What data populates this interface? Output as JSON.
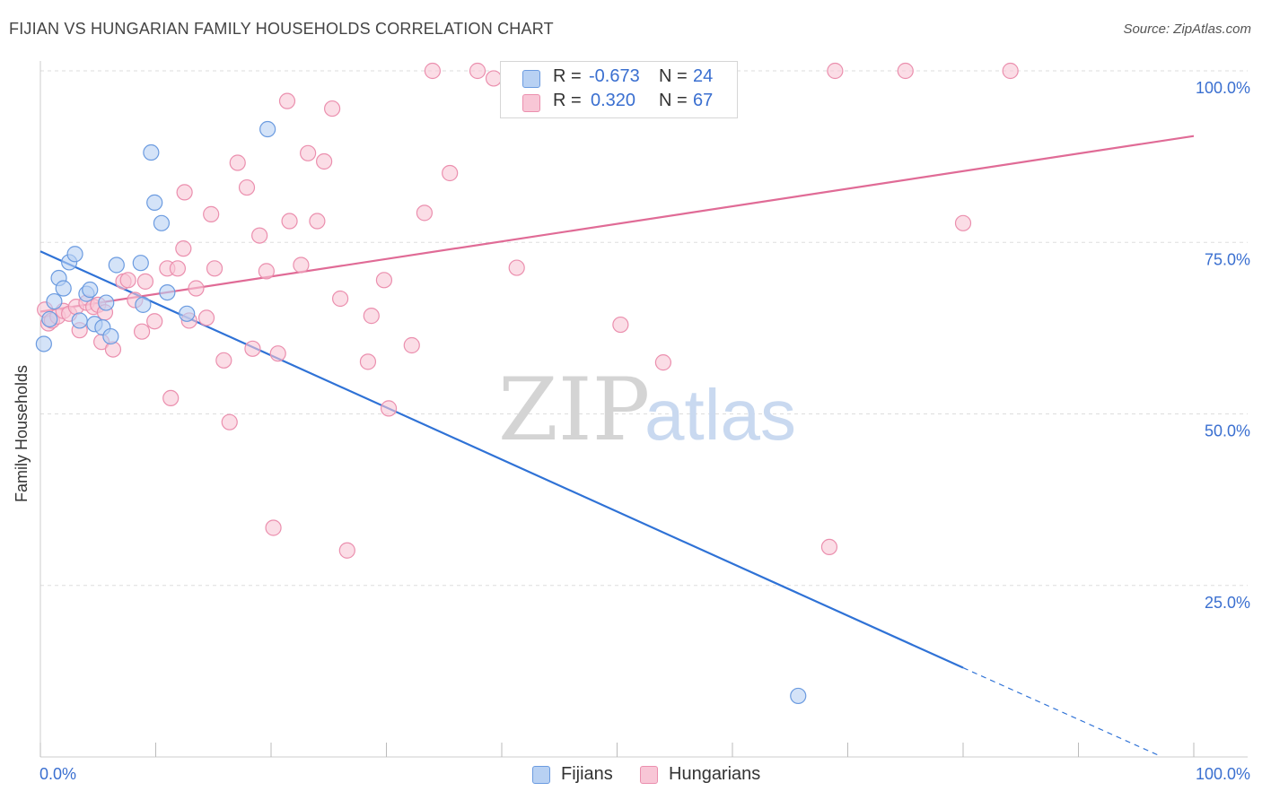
{
  "header": {
    "title": "FIJIAN VS HUNGARIAN FAMILY HOUSEHOLDS CORRELATION CHART",
    "source": "Source: ZipAtlas.com"
  },
  "watermark": {
    "zip": "ZIP",
    "atlas": "atlas"
  },
  "legend": {
    "fijians": {
      "r_label": "R =",
      "r_value": "-0.673",
      "n_label": "N =",
      "n_value": "24"
    },
    "hungarians": {
      "r_label": "R =",
      "r_value": "0.320",
      "n_label": "N =",
      "n_value": "67"
    }
  },
  "bottom_legend": {
    "fijians": "Fijians",
    "hungarians": "Hungarians"
  },
  "colors": {
    "fijian_fill": "#b8d1f3",
    "fijian_stroke": "#6b9be0",
    "fijian_line": "#2f72d6",
    "hungarian_fill": "#f8c6d6",
    "hungarian_stroke": "#eb8fae",
    "hungarian_line": "#e06b96",
    "tick_label": "#3a6fd0",
    "grid": "#dddddd"
  },
  "chart_data": {
    "type": "scatter",
    "title": "FIJIAN VS HUNGARIAN FAMILY HOUSEHOLDS CORRELATION CHART",
    "xlabel": "",
    "ylabel": "Family Households",
    "xlim": [
      0,
      100
    ],
    "ylim": [
      0,
      100
    ],
    "x_tick_labels": [
      "0.0%",
      "100.0%"
    ],
    "y_ticks": [
      25,
      50,
      75,
      100
    ],
    "y_tick_labels": [
      "25.0%",
      "50.0%",
      "75.0%",
      "100.0%"
    ],
    "grid": true,
    "series": [
      {
        "name": "Fijians",
        "r": -0.673,
        "n": 24,
        "points": [
          [
            0.3,
            60.2
          ],
          [
            0.8,
            63.8
          ],
          [
            1.2,
            66.4
          ],
          [
            1.6,
            69.8
          ],
          [
            2.0,
            68.3
          ],
          [
            2.5,
            72.1
          ],
          [
            3.0,
            73.3
          ],
          [
            3.4,
            63.6
          ],
          [
            4.0,
            67.5
          ],
          [
            4.3,
            68.1
          ],
          [
            4.7,
            63.1
          ],
          [
            5.4,
            62.6
          ],
          [
            5.7,
            66.2
          ],
          [
            6.1,
            61.3
          ],
          [
            6.6,
            71.7
          ],
          [
            8.7,
            72.0
          ],
          [
            8.9,
            65.9
          ],
          [
            9.6,
            88.1
          ],
          [
            9.9,
            80.8
          ],
          [
            10.5,
            77.8
          ],
          [
            11.0,
            67.7
          ],
          [
            12.7,
            64.6
          ],
          [
            19.7,
            91.5
          ],
          [
            65.7,
            8.9
          ]
        ],
        "trend": {
          "x0": 0,
          "y0": 73.7,
          "x1": 80,
          "y1": 13.0,
          "dash_to_x": 97,
          "dash_to_y": 0.2
        }
      },
      {
        "name": "Hungarians",
        "r": 0.32,
        "n": 67,
        "points": [
          [
            0.4,
            65.2
          ],
          [
            0.7,
            63.2
          ],
          [
            1.0,
            63.6
          ],
          [
            1.5,
            64.2
          ],
          [
            2.0,
            65.0
          ],
          [
            2.5,
            64.6
          ],
          [
            3.1,
            65.6
          ],
          [
            3.4,
            62.2
          ],
          [
            4.0,
            66.2
          ],
          [
            4.6,
            65.6
          ],
          [
            5.0,
            65.9
          ],
          [
            5.3,
            60.5
          ],
          [
            5.6,
            64.8
          ],
          [
            6.3,
            59.4
          ],
          [
            7.2,
            69.3
          ],
          [
            7.6,
            69.5
          ],
          [
            8.2,
            66.6
          ],
          [
            8.8,
            62.0
          ],
          [
            9.1,
            69.3
          ],
          [
            9.9,
            63.5
          ],
          [
            11.0,
            71.2
          ],
          [
            11.3,
            52.3
          ],
          [
            11.9,
            71.2
          ],
          [
            12.4,
            74.1
          ],
          [
            12.5,
            82.3
          ],
          [
            12.9,
            63.6
          ],
          [
            13.5,
            68.3
          ],
          [
            14.4,
            64.0
          ],
          [
            14.8,
            79.1
          ],
          [
            15.1,
            71.2
          ],
          [
            15.9,
            57.8
          ],
          [
            16.4,
            48.8
          ],
          [
            17.1,
            86.6
          ],
          [
            17.9,
            83.0
          ],
          [
            18.4,
            59.5
          ],
          [
            19.0,
            76.0
          ],
          [
            19.6,
            70.8
          ],
          [
            20.2,
            33.4
          ],
          [
            20.6,
            58.8
          ],
          [
            21.4,
            95.6
          ],
          [
            21.6,
            78.1
          ],
          [
            22.6,
            71.7
          ],
          [
            23.2,
            88.0
          ],
          [
            24.0,
            78.1
          ],
          [
            24.6,
            86.8
          ],
          [
            25.3,
            94.5
          ],
          [
            26.0,
            66.8
          ],
          [
            26.6,
            30.1
          ],
          [
            28.4,
            57.6
          ],
          [
            28.7,
            64.3
          ],
          [
            29.8,
            69.5
          ],
          [
            30.2,
            50.8
          ],
          [
            32.2,
            60.0
          ],
          [
            33.3,
            79.3
          ],
          [
            34.0,
            100.0
          ],
          [
            35.5,
            85.1
          ],
          [
            37.9,
            100.0
          ],
          [
            39.3,
            98.9
          ],
          [
            41.0,
            97.7
          ],
          [
            41.3,
            71.3
          ],
          [
            50.3,
            63.0
          ],
          [
            54.0,
            57.5
          ],
          [
            68.4,
            30.6
          ],
          [
            68.9,
            100.0
          ],
          [
            75.0,
            100.0
          ],
          [
            80.0,
            77.8
          ],
          [
            84.1,
            100.0
          ]
        ],
        "trend": {
          "x0": 0,
          "y0": 64.9,
          "x1": 100,
          "y1": 90.5
        }
      }
    ]
  }
}
